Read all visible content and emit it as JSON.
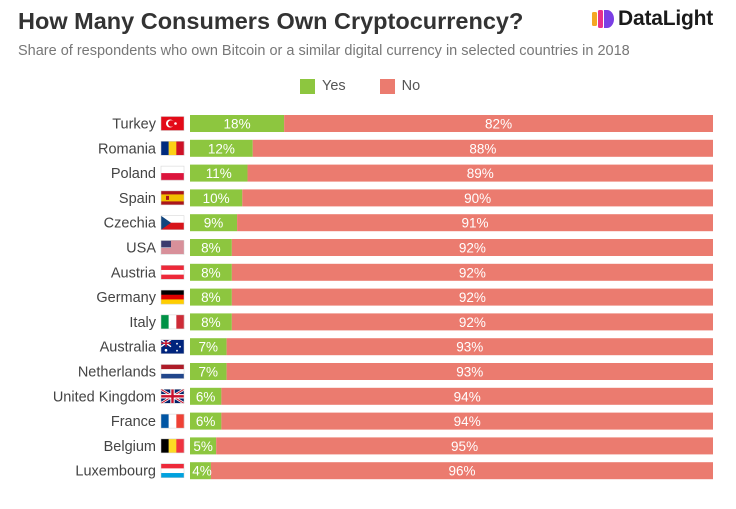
{
  "title": "How Many Consumers Own Cryptocurrency?",
  "subtitle": "Share of respondents who own Bitcoin or a similar digital currency in selected countries in 2018",
  "brand": {
    "name": "DataLight",
    "icon": "datalight-logo-icon"
  },
  "colors": {
    "yes": "#8dc63f",
    "no": "#eb7b6f",
    "title": "#333333",
    "subtitle": "#777777",
    "label": "#444444"
  },
  "chart_data": {
    "type": "bar",
    "orientation": "horizontal",
    "stacked": true,
    "legend": {
      "placement": "top-center",
      "entries": [
        "Yes",
        "No"
      ]
    },
    "categories": [
      "Turkey",
      "Romania",
      "Poland",
      "Spain",
      "Czechia",
      "USA",
      "Austria",
      "Germany",
      "Italy",
      "Australia",
      "Netherlands",
      "United Kingdom",
      "France",
      "Belgium",
      "Luxembourg"
    ],
    "flags": [
      "flag-turkey-icon",
      "flag-romania-icon",
      "flag-poland-icon",
      "flag-spain-icon",
      "flag-czechia-icon",
      "flag-usa-icon",
      "flag-austria-icon",
      "flag-germany-icon",
      "flag-italy-icon",
      "flag-australia-icon",
      "flag-netherlands-icon",
      "flag-united-kingdom-icon",
      "flag-france-icon",
      "flag-belgium-icon",
      "flag-luxembourg-icon"
    ],
    "series": [
      {
        "name": "Yes",
        "values": [
          18,
          12,
          11,
          10,
          9,
          8,
          8,
          8,
          8,
          7,
          7,
          6,
          6,
          5,
          4
        ]
      },
      {
        "name": "No",
        "values": [
          82,
          88,
          89,
          90,
          91,
          92,
          92,
          92,
          92,
          93,
          93,
          94,
          94,
          95,
          96
        ]
      }
    ],
    "value_suffix": "%",
    "xlim": [
      0,
      100
    ],
    "grid": false
  }
}
